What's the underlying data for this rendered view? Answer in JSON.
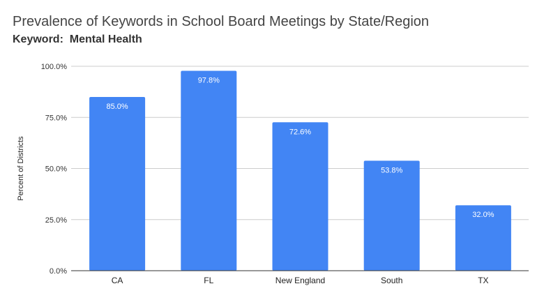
{
  "chart_data": {
    "type": "bar",
    "title": "Prevalence of Keywords in School Board Meetings by State/Region",
    "subtitle": "Keyword:  Mental Health",
    "xlabel": "",
    "ylabel": "Percent of Districts",
    "ylim": [
      0,
      100
    ],
    "y_ticks": [
      0,
      25,
      50,
      75,
      100
    ],
    "y_tick_labels": [
      "0.0%",
      "25.0%",
      "50.0%",
      "75.0%",
      "100.0%"
    ],
    "categories": [
      "CA",
      "FL",
      "New England",
      "South",
      "TX"
    ],
    "values": [
      85.0,
      97.8,
      72.6,
      53.8,
      32.0
    ],
    "data_labels": [
      "85.0%",
      "97.8%",
      "72.6%",
      "53.8%",
      "32.0%"
    ],
    "bar_color": "#4285f4",
    "grid": true,
    "legend": "none"
  }
}
